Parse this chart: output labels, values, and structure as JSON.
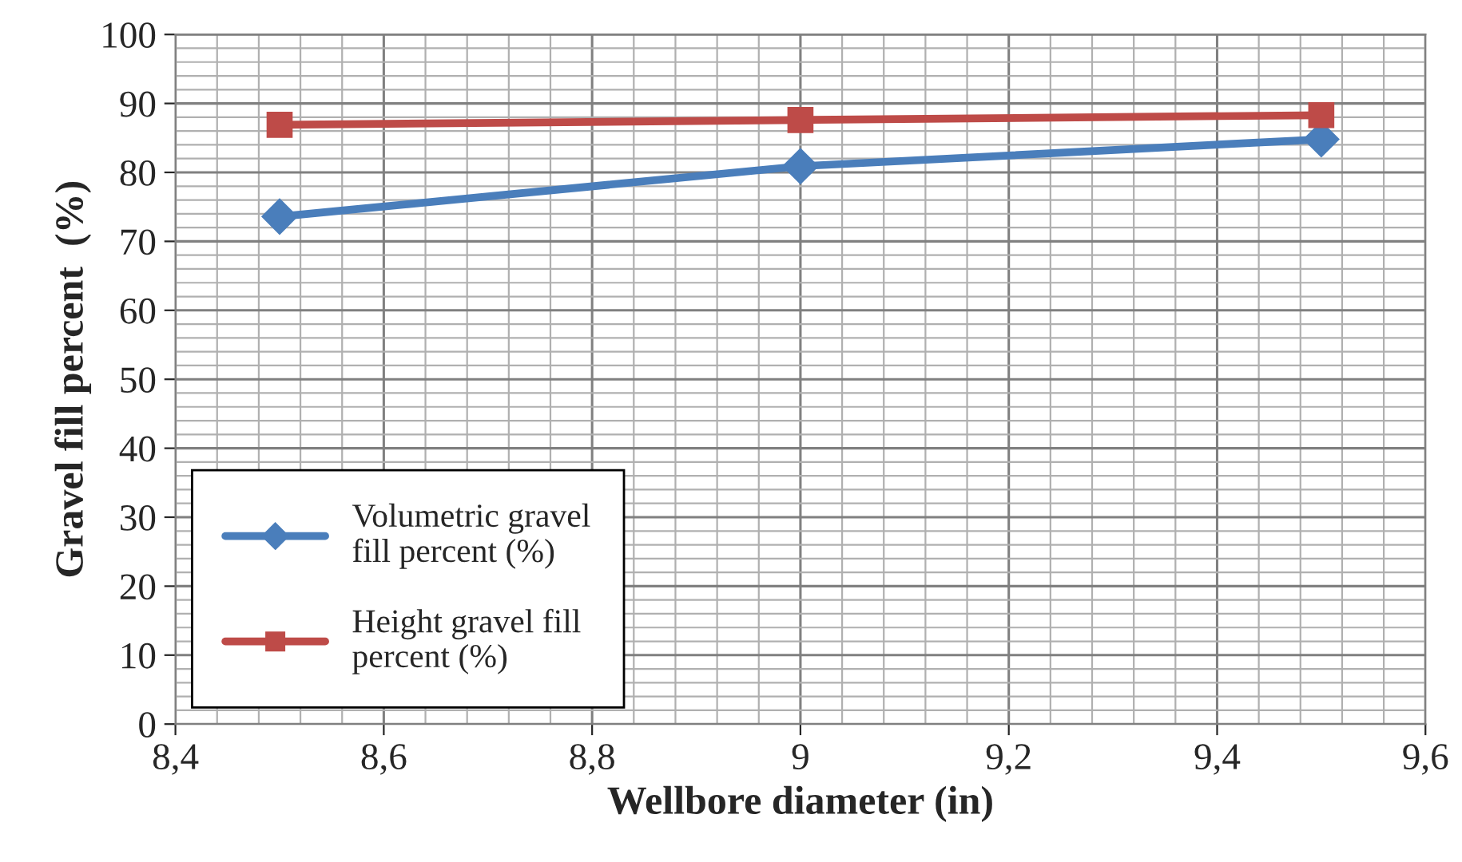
{
  "chart_data": {
    "type": "line",
    "xlabel": "Wellbore diameter (in)",
    "ylabel": "Gravel fill percent  (%)",
    "x": [
      8.5,
      9,
      9.5
    ],
    "series": [
      {
        "name": "Volumetric gravel\nfill percent (%)",
        "color": "#4a7ebb",
        "values": [
          73.6,
          80.9,
          84.8
        ],
        "marker": "diamond"
      },
      {
        "name": "Height gravel fill\npercent (%)",
        "color": "#be4b48",
        "values": [
          86.9,
          87.6,
          88.3
        ],
        "marker": "square"
      }
    ],
    "xlim": [
      8.4,
      9.6
    ],
    "xticks": [
      {
        "value": 8.4,
        "label": "8,4"
      },
      {
        "value": 8.6,
        "label": "8,6"
      },
      {
        "value": 8.8,
        "label": "8,8"
      },
      9,
      {
        "value": 9.2,
        "label": "9,2"
      },
      {
        "value": 9.4,
        "label": "9,4"
      },
      {
        "value": 9.6,
        "label": "9,6"
      }
    ],
    "ylim": [
      0,
      100
    ],
    "yticks": [
      0,
      10,
      20,
      30,
      40,
      50,
      60,
      70,
      80,
      90,
      100
    ],
    "grid": true,
    "legend": "bottom left",
    "line_style": "solid"
  }
}
